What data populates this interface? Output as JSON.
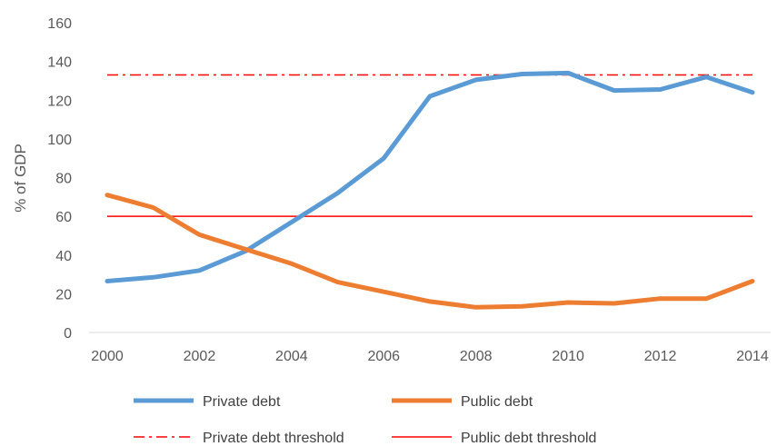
{
  "chart_data": {
    "type": "line",
    "title": "",
    "xlabel": "",
    "ylabel": "% of GDP",
    "x": [
      2000,
      2001,
      2002,
      2003,
      2004,
      2005,
      2006,
      2007,
      2008,
      2009,
      2010,
      2011,
      2012,
      2013,
      2014
    ],
    "x_ticks": [
      "2000",
      "2002",
      "2004",
      "2006",
      "2008",
      "2010",
      "2012",
      "2014"
    ],
    "y_ticks": [
      "0",
      "20",
      "40",
      "60",
      "80",
      "100",
      "120",
      "140",
      "160"
    ],
    "ylim": [
      0,
      160
    ],
    "xlim": [
      2000,
      2014
    ],
    "grid": false,
    "legend_position": "bottom",
    "series": [
      {
        "name": "Private debt",
        "color": "#5B9BD5",
        "style": "solid",
        "values": [
          26.5,
          28.5,
          32,
          42,
          57,
          72,
          90,
          122,
          130.5,
          133.5,
          134,
          125,
          125.5,
          132,
          124
        ]
      },
      {
        "name": "Public debt",
        "color": "#ED7D31",
        "style": "solid",
        "values": [
          71,
          64.5,
          50.5,
          43,
          35.5,
          26,
          21,
          16,
          13,
          13.5,
          15.5,
          15,
          17.5,
          17.5,
          26.5
        ]
      }
    ],
    "thresholds": [
      {
        "name": "Private debt threshold",
        "value": 133,
        "color": "#FF0000",
        "style": "dashdot"
      },
      {
        "name": "Public debt threshold",
        "value": 60,
        "color": "#FF0000",
        "style": "solid"
      }
    ]
  }
}
